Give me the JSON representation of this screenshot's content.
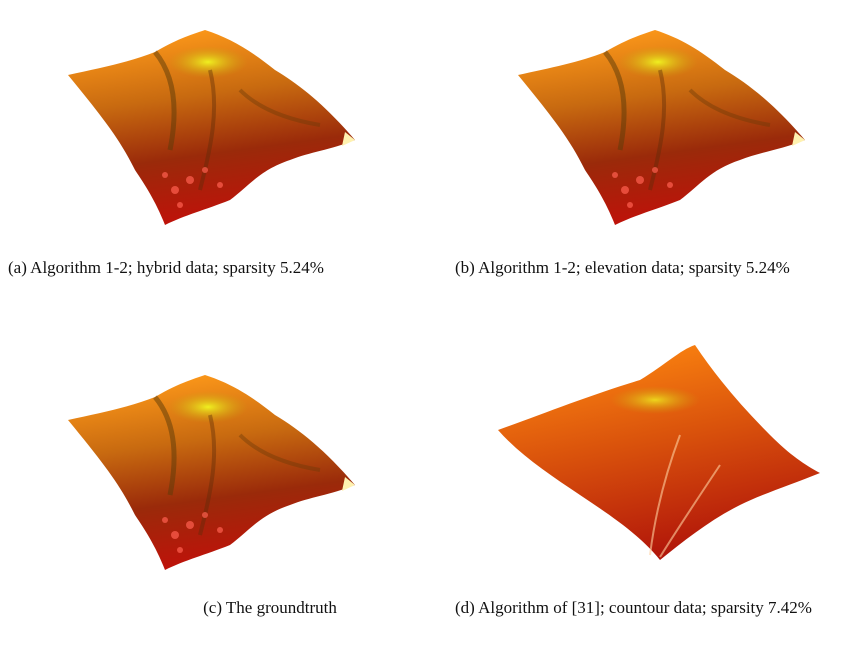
{
  "figure": {
    "subfigures": [
      {
        "caption": "(a) Algorithm 1-2; hybrid data; sparsity 5.24%"
      },
      {
        "caption": "(b) Algorithm 1-2; elevation data; sparsity 5.24%"
      },
      {
        "caption": "(c) The groundtruth"
      },
      {
        "caption": "(d) Algorithm of [31]; countour data; sparsity 7.42%"
      }
    ]
  }
}
